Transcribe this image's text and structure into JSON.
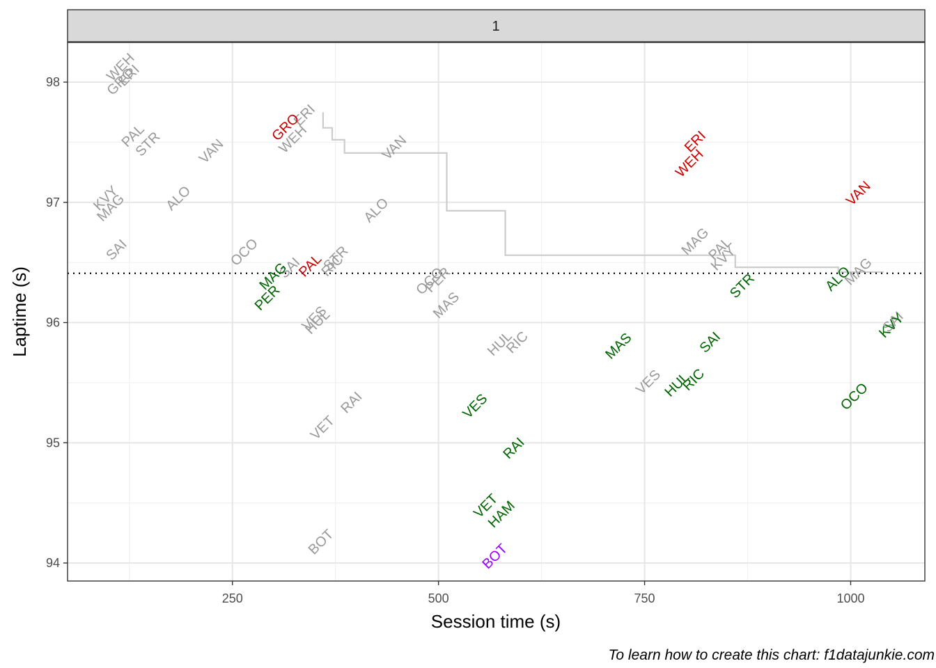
{
  "chart_data": {
    "type": "scatter",
    "facet_label": "1",
    "xlabel": "Session time (s)",
    "ylabel": "Laptime (s)",
    "xlim": [
      50,
      1090
    ],
    "ylim": [
      93.85,
      98.33
    ],
    "x_ticks": [
      250,
      500,
      750,
      1000
    ],
    "y_ticks": [
      94,
      95,
      96,
      97,
      98
    ],
    "grid": true,
    "reference_line": {
      "y": 96.41,
      "style": "dotted"
    },
    "colors": {
      "lap": "#999999",
      "personal_best": "#cc0000",
      "improvement": "#006400",
      "session_best": "#9900ff",
      "step": "#cccccc"
    },
    "step_line": [
      {
        "x": 360,
        "y": 97.75
      },
      {
        "x": 360,
        "y": 97.62
      },
      {
        "x": 371,
        "y": 97.62
      },
      {
        "x": 371,
        "y": 97.52
      },
      {
        "x": 386,
        "y": 97.52
      },
      {
        "x": 386,
        "y": 97.41
      },
      {
        "x": 510,
        "y": 97.41
      },
      {
        "x": 510,
        "y": 96.93
      },
      {
        "x": 581,
        "y": 96.93
      },
      {
        "x": 581,
        "y": 96.56
      },
      {
        "x": 860,
        "y": 96.56
      },
      {
        "x": 860,
        "y": 96.46
      },
      {
        "x": 985,
        "y": 96.46
      },
      {
        "x": 985,
        "y": 96.42
      },
      {
        "x": 1040,
        "y": 96.42
      }
    ],
    "points": [
      {
        "label": "WEH",
        "x": 115,
        "y": 98.12,
        "kind": "lap"
      },
      {
        "label": "GRO",
        "x": 115,
        "y": 98.0,
        "kind": "lap"
      },
      {
        "label": "ERI",
        "x": 125,
        "y": 98.05,
        "kind": "lap"
      },
      {
        "label": "PAL",
        "x": 130,
        "y": 97.55,
        "kind": "lap"
      },
      {
        "label": "STR",
        "x": 148,
        "y": 97.48,
        "kind": "lap"
      },
      {
        "label": "VAN",
        "x": 225,
        "y": 97.42,
        "kind": "lap"
      },
      {
        "label": "KVY",
        "x": 97,
        "y": 97.03,
        "kind": "lap"
      },
      {
        "label": "MAG",
        "x": 103,
        "y": 96.95,
        "kind": "lap"
      },
      {
        "label": "ALO",
        "x": 185,
        "y": 97.03,
        "kind": "lap"
      },
      {
        "label": "SAI",
        "x": 110,
        "y": 96.6,
        "kind": "lap"
      },
      {
        "label": "OCO",
        "x": 265,
        "y": 96.58,
        "kind": "lap"
      },
      {
        "label": "ERI",
        "x": 338,
        "y": 97.72,
        "kind": "lap"
      },
      {
        "label": "WEH",
        "x": 324,
        "y": 97.52,
        "kind": "lap"
      },
      {
        "label": "GRO",
        "x": 315,
        "y": 97.62,
        "kind": "personal_best"
      },
      {
        "label": "VAN",
        "x": 447,
        "y": 97.45,
        "kind": "lap"
      },
      {
        "label": "ALO",
        "x": 425,
        "y": 96.93,
        "kind": "lap"
      },
      {
        "label": "SAI",
        "x": 320,
        "y": 96.45,
        "kind": "lap"
      },
      {
        "label": "MAG",
        "x": 300,
        "y": 96.38,
        "kind": "improvement"
      },
      {
        "label": "PAL",
        "x": 345,
        "y": 96.47,
        "kind": "personal_best"
      },
      {
        "label": "STR",
        "x": 376,
        "y": 96.53,
        "kind": "lap"
      },
      {
        "label": "RIC",
        "x": 372,
        "y": 96.47,
        "kind": "lap"
      },
      {
        "label": "PER",
        "x": 293,
        "y": 96.2,
        "kind": "improvement"
      },
      {
        "label": "VES",
        "x": 350,
        "y": 96.03,
        "kind": "lap"
      },
      {
        "label": "HUL",
        "x": 354,
        "y": 96.0,
        "kind": "lap"
      },
      {
        "label": "OCO",
        "x": 490,
        "y": 96.34,
        "kind": "lap"
      },
      {
        "label": "PER",
        "x": 500,
        "y": 96.35,
        "kind": "lap"
      },
      {
        "label": "MAS",
        "x": 510,
        "y": 96.14,
        "kind": "lap"
      },
      {
        "label": "VET",
        "x": 360,
        "y": 95.12,
        "kind": "lap"
      },
      {
        "label": "RAI",
        "x": 395,
        "y": 95.33,
        "kind": "lap"
      },
      {
        "label": "BOT",
        "x": 358,
        "y": 94.17,
        "kind": "lap"
      },
      {
        "label": "HUL",
        "x": 575,
        "y": 95.82,
        "kind": "lap"
      },
      {
        "label": "RIC",
        "x": 596,
        "y": 95.83,
        "kind": "lap"
      },
      {
        "label": "VES",
        "x": 545,
        "y": 95.3,
        "kind": "improvement"
      },
      {
        "label": "RAI",
        "x": 592,
        "y": 94.95,
        "kind": "improvement"
      },
      {
        "label": "VET",
        "x": 558,
        "y": 94.47,
        "kind": "improvement"
      },
      {
        "label": "HAM",
        "x": 577,
        "y": 94.4,
        "kind": "improvement"
      },
      {
        "label": "BOT",
        "x": 569,
        "y": 94.05,
        "kind": "session_best"
      },
      {
        "label": "MAS",
        "x": 719,
        "y": 95.8,
        "kind": "improvement"
      },
      {
        "label": "VES",
        "x": 755,
        "y": 95.5,
        "kind": "lap"
      },
      {
        "label": "HUL",
        "x": 790,
        "y": 95.48,
        "kind": "improvement"
      },
      {
        "label": "RIC",
        "x": 810,
        "y": 95.52,
        "kind": "improvement"
      },
      {
        "label": "SAI",
        "x": 830,
        "y": 95.83,
        "kind": "improvement"
      },
      {
        "label": "ERI",
        "x": 812,
        "y": 97.5,
        "kind": "personal_best"
      },
      {
        "label": "WEH",
        "x": 805,
        "y": 97.32,
        "kind": "personal_best"
      },
      {
        "label": "MAG",
        "x": 812,
        "y": 96.67,
        "kind": "lap"
      },
      {
        "label": "PAL",
        "x": 842,
        "y": 96.61,
        "kind": "lap"
      },
      {
        "label": "KVY",
        "x": 846,
        "y": 96.53,
        "kind": "lap"
      },
      {
        "label": "STR",
        "x": 869,
        "y": 96.3,
        "kind": "improvement"
      },
      {
        "label": "VAN",
        "x": 1010,
        "y": 97.07,
        "kind": "personal_best"
      },
      {
        "label": "ALO",
        "x": 985,
        "y": 96.36,
        "kind": "improvement"
      },
      {
        "label": "MAG",
        "x": 1010,
        "y": 96.42,
        "kind": "lap"
      },
      {
        "label": "OCO",
        "x": 1005,
        "y": 95.38,
        "kind": "improvement"
      },
      {
        "label": "SAI",
        "x": 1052,
        "y": 96.0,
        "kind": "lap"
      },
      {
        "label": "KVY",
        "x": 1050,
        "y": 95.97,
        "kind": "improvement"
      }
    ]
  },
  "caption": "To learn how to create this chart: f1datajunkie.com"
}
